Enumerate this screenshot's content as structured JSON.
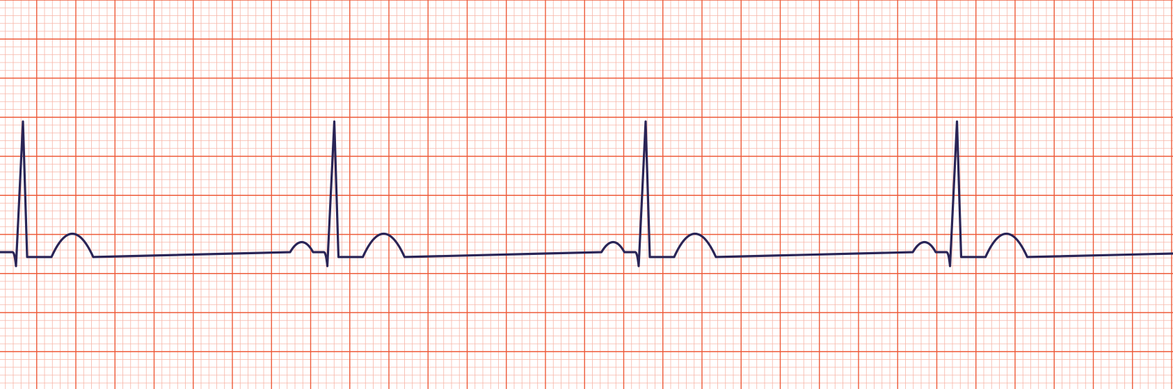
{
  "chart_data": {
    "type": "line",
    "paper": {
      "background": "#ffffff",
      "minor_grid_color": "#f7b4a6",
      "major_grid_color": "#ee5a38",
      "minor_per_major": 5
    },
    "trace": {
      "color": "#2a2456"
    },
    "beats_visible": 4,
    "waves": [
      "P",
      "Q",
      "R",
      "S",
      "T"
    ]
  }
}
